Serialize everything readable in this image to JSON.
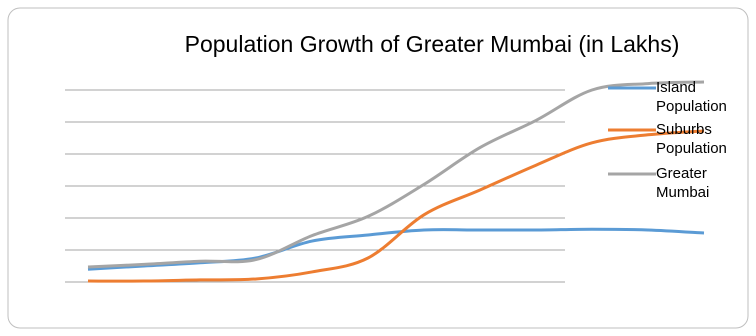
{
  "chart_data": {
    "type": "line",
    "title": "Population Growth of Greater Mumbai (in Lakhs)",
    "categories": [
      null,
      null,
      null,
      null,
      null,
      null,
      null,
      null,
      null,
      null,
      null,
      null
    ],
    "series": [
      {
        "name": "Island Population",
        "color": "#5b9bd5",
        "values": [
          8,
          10,
          12,
          15,
          25.6,
          29.4,
          32.5,
          32.5,
          32.5,
          33,
          32.5,
          30.6
        ]
      },
      {
        "name": "Suburbs Population",
        "color": "#ed7d31",
        "values": [
          0.6,
          0.6,
          1.3,
          1.9,
          6.3,
          15,
          42,
          57.5,
          73,
          87,
          92,
          94.4
        ]
      },
      {
        "name": "Greater Mumbai",
        "color": "#a5a5a5",
        "values": [
          9.4,
          11,
          13,
          14,
          29,
          41,
          61,
          84,
          101,
          120,
          124,
          125
        ]
      }
    ],
    "ylim": [
      0,
      140
    ],
    "yticks": [
      0,
      20,
      40,
      60,
      80,
      100,
      120
    ],
    "grid": true,
    "legend": "right"
  }
}
